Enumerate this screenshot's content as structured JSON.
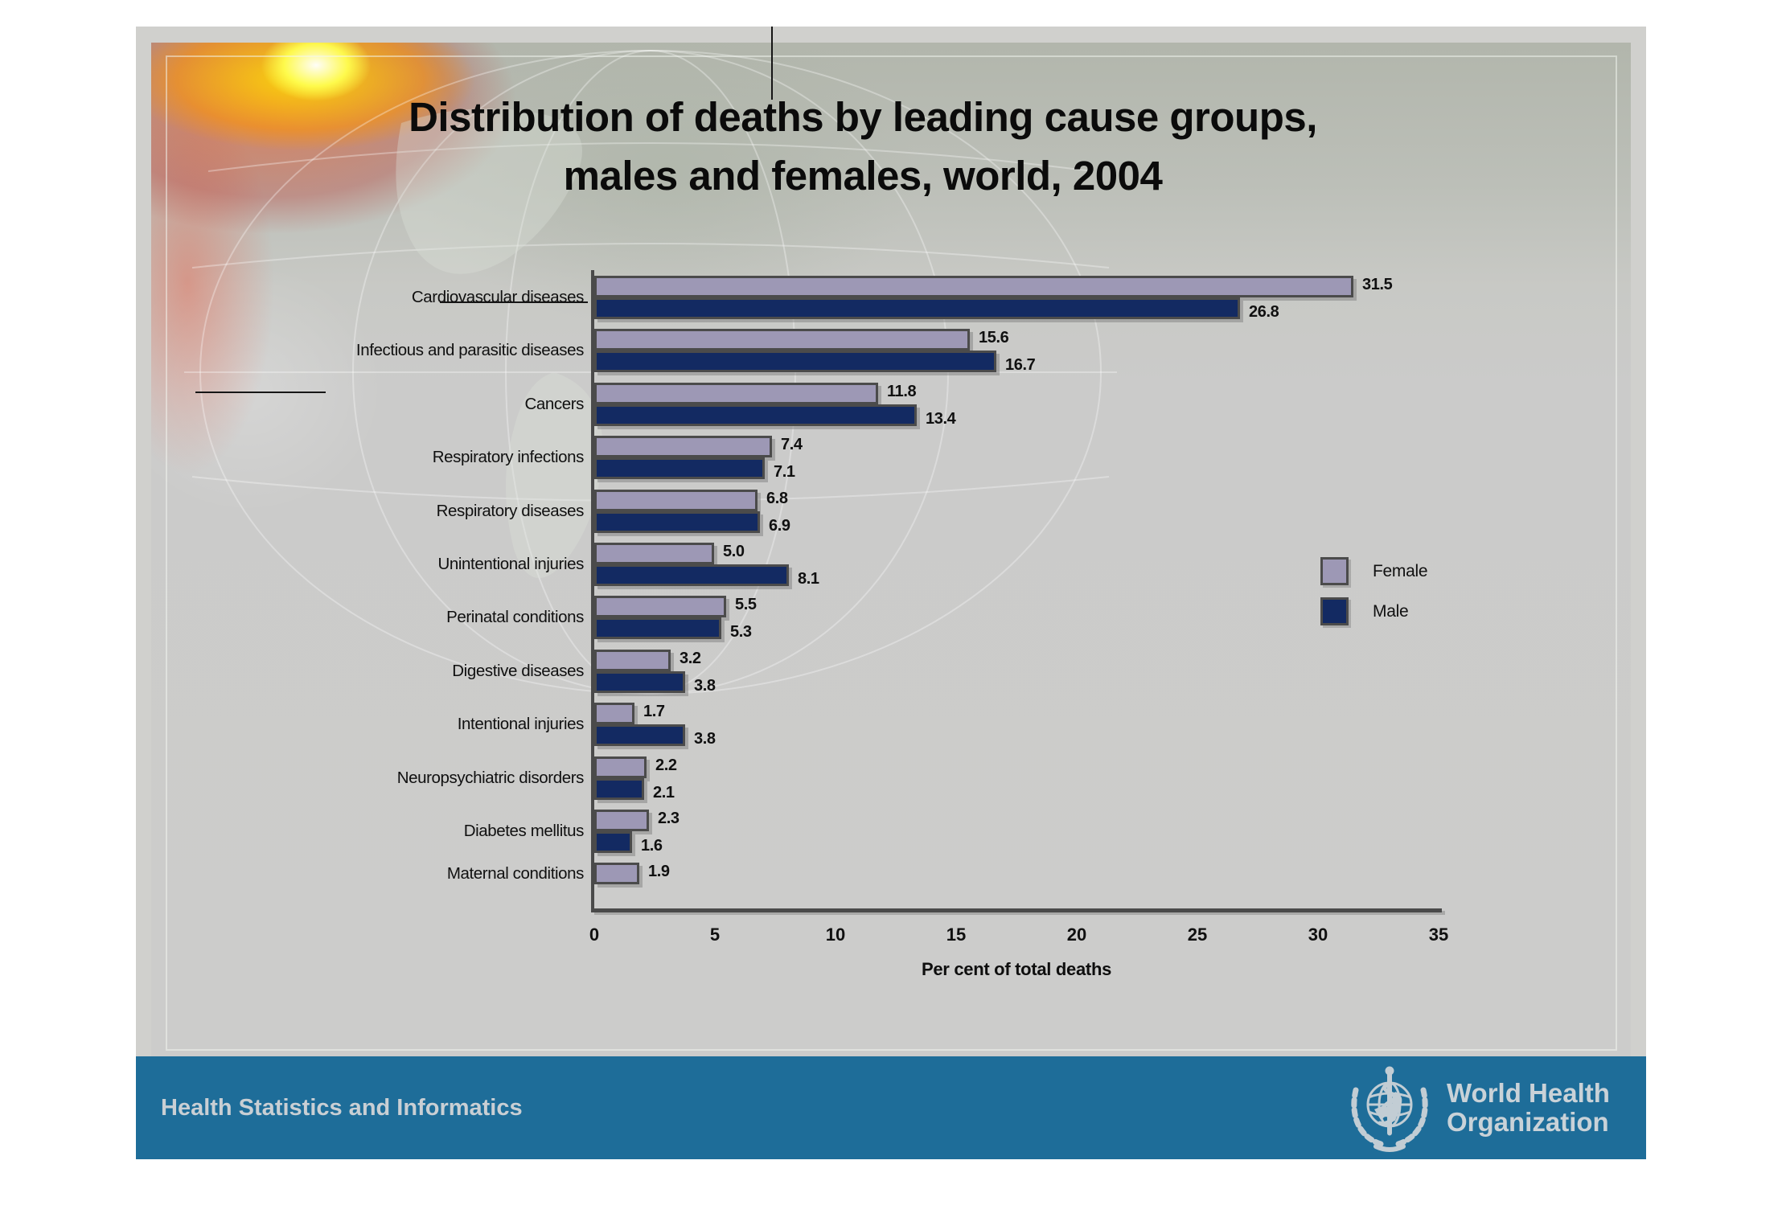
{
  "slide": {
    "title_line1": "Distribution of deaths by leading cause groups,",
    "title_line2": "males and females, world, 2004"
  },
  "chart_data": {
    "type": "bar",
    "orientation": "horizontal",
    "title": "Distribution of deaths by leading cause groups, males and females, world, 2004",
    "xlabel": "Per cent of total deaths",
    "ylabel": "",
    "xlim": [
      0,
      35
    ],
    "xticks": [
      0,
      5,
      10,
      15,
      20,
      25,
      30,
      35
    ],
    "grid": false,
    "legend_position": "right",
    "value_decimals": 1,
    "categories": [
      "Cardiovascular diseases",
      "Infectious and parasitic diseases",
      "Cancers",
      "Respiratory infections",
      "Respiratory diseases",
      "Unintentional injuries",
      "Perinatal conditions",
      "Digestive diseases",
      "Intentional injuries",
      "Neuropsychiatric disorders",
      "Diabetes mellitus",
      "Maternal conditions"
    ],
    "series": [
      {
        "name": "Female",
        "color": "#9d98b5",
        "values": [
          31.5,
          15.6,
          11.8,
          7.4,
          6.8,
          5.0,
          5.5,
          3.2,
          1.7,
          2.2,
          2.3,
          1.9
        ]
      },
      {
        "name": "Male",
        "color": "#132a62",
        "values": [
          26.8,
          16.7,
          13.4,
          7.1,
          6.9,
          8.1,
          5.3,
          3.8,
          3.8,
          2.1,
          1.6,
          null
        ]
      }
    ]
  },
  "footer": {
    "department": "Health Statistics and Informatics",
    "who_line1": "World Health",
    "who_line2": "Organization"
  },
  "colors": {
    "slide_bg": "#d0d0cd",
    "chart_bg": "#cbcbca",
    "female": "#9d98b5",
    "male": "#132a62",
    "bar_border": "#4b4b4b",
    "footer_bar": "#1e6d99",
    "footer_text": "#c9cfd4"
  }
}
